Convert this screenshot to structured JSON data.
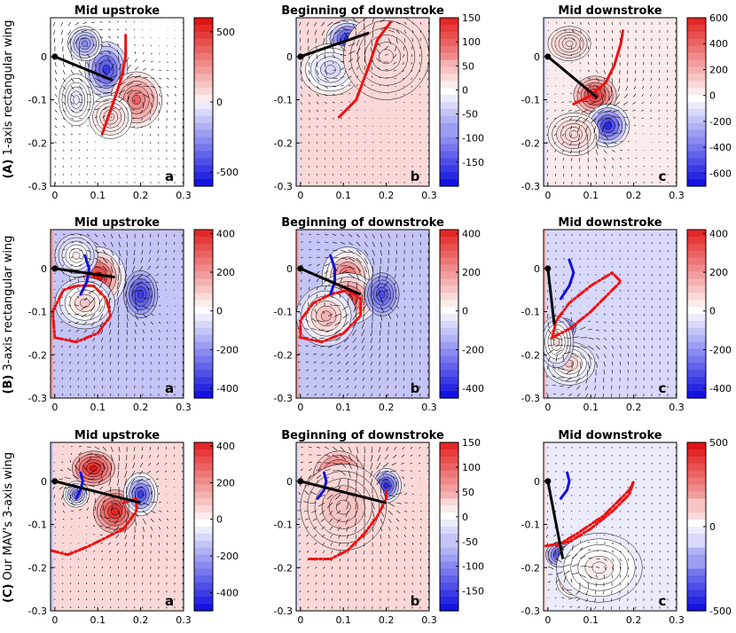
{
  "row_labels": [
    {
      "tag": "(A)",
      "text": "1-axis rectangular wing"
    },
    {
      "tag": "(B)",
      "text": "3-axis rectangular wing"
    },
    {
      "tag": "(C)",
      "text": "Our MAV's 3-axis wing"
    }
  ],
  "colors": {
    "positive": "#e01414",
    "negative": "#1414e0",
    "neutral": "#ffffff",
    "wing": "#000000",
    "trajectory_red": "#ee1111",
    "trajectory_blue": "#1111dd"
  },
  "chart_data": [
    {
      "type": "heatmap",
      "title": "Mid upstroke",
      "panel_letter": "a",
      "x_ticks": [
        "0",
        "0.1",
        "0.2",
        "0.3"
      ],
      "y_ticks": [
        "0",
        "-0.1",
        "-0.2",
        "-0.3"
      ],
      "xlim": [
        -0.01,
        0.3
      ],
      "ylim": [
        -0.3,
        0.09
      ],
      "colorbar": {
        "min": -600,
        "max": 600,
        "ticks": [
          500,
          0,
          -500
        ],
        "tick_labels": [
          "500",
          "0",
          "-500"
        ]
      },
      "background": 0,
      "blobs": [
        {
          "x": 0.12,
          "y": -0.03,
          "rx": 0.05,
          "ry": 0.065,
          "v": -500
        },
        {
          "x": 0.07,
          "y": 0.03,
          "rx": 0.04,
          "ry": 0.04,
          "v": -300
        },
        {
          "x": 0.19,
          "y": -0.1,
          "rx": 0.06,
          "ry": 0.065,
          "v": 380
        },
        {
          "x": 0.13,
          "y": -0.14,
          "rx": 0.05,
          "ry": 0.05,
          "v": 120
        },
        {
          "x": 0.05,
          "y": -0.1,
          "rx": 0.04,
          "ry": 0.06,
          "v": -40
        }
      ],
      "wing": [
        [
          0,
          0
        ],
        [
          0.135,
          -0.055
        ]
      ],
      "red_curve": [
        [
          0.11,
          -0.18
        ],
        [
          0.135,
          -0.11
        ],
        [
          0.155,
          -0.05
        ],
        [
          0.165,
          0.0
        ],
        [
          0.165,
          0.05
        ]
      ],
      "blue_curve": []
    },
    {
      "type": "heatmap",
      "title": "Beginning of downstroke",
      "panel_letter": "b",
      "x_ticks": [
        "0",
        "0.1",
        "0.2",
        "0.3"
      ],
      "y_ticks": [
        "0",
        "-0.1",
        "-0.2",
        "-0.3"
      ],
      "xlim": [
        -0.01,
        0.3
      ],
      "ylim": [
        -0.3,
        0.09
      ],
      "colorbar": {
        "min": -200,
        "max": 150,
        "ticks": [
          150,
          100,
          50,
          0,
          -50,
          -100,
          -150
        ],
        "tick_labels": [
          "150",
          "100",
          "50",
          "0",
          "-50",
          "-100",
          "-150"
        ]
      },
      "background": 20,
      "blobs": [
        {
          "x": 0.11,
          "y": 0.04,
          "rx": 0.05,
          "ry": 0.045,
          "v": -180
        },
        {
          "x": 0.07,
          "y": -0.03,
          "rx": 0.07,
          "ry": 0.06,
          "v": -40
        },
        {
          "x": 0.19,
          "y": 0.04,
          "rx": 0.05,
          "ry": 0.05,
          "v": 130
        },
        {
          "x": 0.2,
          "y": 0.0,
          "rx": 0.1,
          "ry": 0.1,
          "v": 30
        }
      ],
      "wing": [
        [
          0,
          0
        ],
        [
          0.16,
          0.055
        ]
      ],
      "red_curve": [
        [
          0.09,
          -0.14
        ],
        [
          0.13,
          -0.1
        ],
        [
          0.16,
          -0.02
        ],
        [
          0.18,
          0.04
        ],
        [
          0.21,
          0.08
        ]
      ],
      "blue_curve": []
    },
    {
      "type": "heatmap",
      "title": "Mid downstroke",
      "panel_letter": "c",
      "x_ticks": [
        "0",
        "0.1",
        "0.2",
        "0.3"
      ],
      "y_ticks": [
        "0",
        "-0.1",
        "-0.2",
        "-0.3"
      ],
      "xlim": [
        -0.01,
        0.3
      ],
      "ylim": [
        -0.3,
        0.09
      ],
      "colorbar": {
        "min": -700,
        "max": 600,
        "ticks": [
          600,
          400,
          200,
          0,
          -200,
          -400,
          -600
        ],
        "tick_labels": [
          "600",
          "400",
          "200",
          "0",
          "-200",
          "-400",
          "-600"
        ]
      },
      "background": 60,
      "blobs": [
        {
          "x": 0.11,
          "y": -0.09,
          "rx": 0.05,
          "ry": 0.045,
          "v": 550
        },
        {
          "x": 0.14,
          "y": -0.16,
          "rx": 0.05,
          "ry": 0.05,
          "v": -650
        },
        {
          "x": 0.06,
          "y": -0.18,
          "rx": 0.06,
          "ry": 0.05,
          "v": 100
        },
        {
          "x": 0.05,
          "y": 0.03,
          "rx": 0.05,
          "ry": 0.04,
          "v": 120
        }
      ],
      "wing": [
        [
          0,
          0
        ],
        [
          0.115,
          -0.095
        ]
      ],
      "red_curve": [
        [
          0.06,
          -0.11
        ],
        [
          0.1,
          -0.09
        ],
        [
          0.135,
          -0.06
        ],
        [
          0.155,
          -0.02
        ],
        [
          0.17,
          0.03
        ],
        [
          0.175,
          0.06
        ]
      ],
      "blue_curve": []
    },
    {
      "type": "heatmap",
      "title": "Mid upstroke",
      "panel_letter": "a",
      "x_ticks": [
        "0",
        "0.1",
        "0.2",
        "0.3"
      ],
      "y_ticks": [
        "0",
        "-0.1",
        "-0.2",
        "-0.3"
      ],
      "xlim": [
        -0.01,
        0.3
      ],
      "ylim": [
        -0.3,
        0.09
      ],
      "colorbar": {
        "min": -450,
        "max": 420,
        "ticks": [
          400,
          200,
          0,
          -200,
          -400
        ],
        "tick_labels": [
          "400",
          "200",
          "0",
          "-200",
          "-400"
        ]
      },
      "background": -110,
      "blobs": [
        {
          "x": 0.1,
          "y": -0.02,
          "rx": 0.065,
          "ry": 0.07,
          "v": 420
        },
        {
          "x": 0.07,
          "y": -0.08,
          "rx": 0.07,
          "ry": 0.06,
          "v": 120
        },
        {
          "x": 0.2,
          "y": -0.06,
          "rx": 0.04,
          "ry": 0.055,
          "v": -380
        },
        {
          "x": 0.05,
          "y": 0.03,
          "rx": 0.05,
          "ry": 0.05,
          "v": 40
        }
      ],
      "wing": [
        [
          0,
          0
        ],
        [
          0.14,
          -0.02
        ]
      ],
      "red_curve": [
        [
          0.0,
          -0.16
        ],
        [
          0.05,
          -0.17
        ],
        [
          0.1,
          -0.15
        ],
        [
          0.13,
          -0.11
        ],
        [
          0.12,
          -0.07
        ],
        [
          0.09,
          -0.04
        ],
        [
          0.05,
          -0.04
        ],
        [
          0.02,
          -0.05
        ],
        [
          -0.005,
          -0.1
        ],
        [
          0.0,
          -0.16
        ]
      ],
      "blue_curve": [
        [
          0.06,
          -0.06
        ],
        [
          0.075,
          -0.03
        ],
        [
          0.08,
          0.0
        ],
        [
          0.07,
          0.03
        ]
      ]
    },
    {
      "type": "heatmap",
      "title": "Beginning of downstroke",
      "panel_letter": "b",
      "x_ticks": [
        "0",
        "0.1",
        "0.2",
        "0.3"
      ],
      "y_ticks": [
        "0",
        "-0.1",
        "-0.2",
        "-0.3"
      ],
      "xlim": [
        -0.01,
        0.3
      ],
      "ylim": [
        -0.3,
        0.09
      ],
      "colorbar": {
        "min": -450,
        "max": 420,
        "ticks": [
          400,
          200,
          0,
          -200,
          -400
        ],
        "tick_labels": [
          "400",
          "200",
          "0",
          "-200",
          "-400"
        ]
      },
      "background": -110,
      "blobs": [
        {
          "x": 0.11,
          "y": -0.02,
          "rx": 0.06,
          "ry": 0.07,
          "v": 320
        },
        {
          "x": 0.11,
          "y": -0.07,
          "rx": 0.07,
          "ry": 0.06,
          "v": 380
        },
        {
          "x": 0.19,
          "y": -0.06,
          "rx": 0.04,
          "ry": 0.05,
          "v": -330
        },
        {
          "x": 0.06,
          "y": -0.11,
          "rx": 0.07,
          "ry": 0.07,
          "v": 150
        }
      ],
      "wing": [
        [
          0,
          0
        ],
        [
          0.14,
          -0.06
        ]
      ],
      "red_curve": [
        [
          0.0,
          -0.16
        ],
        [
          0.05,
          -0.17
        ],
        [
          0.1,
          -0.15
        ],
        [
          0.14,
          -0.11
        ],
        [
          0.14,
          -0.07
        ],
        [
          0.11,
          -0.05
        ],
        [
          0.07,
          -0.06
        ],
        [
          0.03,
          -0.08
        ],
        [
          0.0,
          -0.12
        ],
        [
          0.0,
          -0.16
        ]
      ],
      "blue_curve": [
        [
          0.07,
          -0.06
        ],
        [
          0.08,
          -0.03
        ],
        [
          0.08,
          0.0
        ],
        [
          0.07,
          0.03
        ]
      ]
    },
    {
      "type": "heatmap",
      "title": "Mid downstroke",
      "panel_letter": "c",
      "x_ticks": [
        "0",
        "0.1",
        "0.2",
        "0.3"
      ],
      "y_ticks": [
        "0",
        "-0.1",
        "-0.2",
        "-0.3"
      ],
      "xlim": [
        -0.01,
        0.3
      ],
      "ylim": [
        -0.3,
        0.09
      ],
      "colorbar": {
        "min": -450,
        "max": 420,
        "ticks": [
          400,
          200,
          0,
          -200,
          -400
        ],
        "tick_labels": [
          "400",
          "200",
          "0",
          "-200",
          "-400"
        ]
      },
      "background": -90,
      "blobs": [
        {
          "x": 0.035,
          "y": -0.14,
          "rx": 0.03,
          "ry": 0.025,
          "v": -420
        },
        {
          "x": 0.045,
          "y": -0.21,
          "rx": 0.035,
          "ry": 0.03,
          "v": 400
        },
        {
          "x": 0.05,
          "y": -0.22,
          "rx": 0.06,
          "ry": 0.05,
          "v": 120
        },
        {
          "x": 0.02,
          "y": -0.17,
          "rx": 0.04,
          "ry": 0.06,
          "v": 60
        }
      ],
      "wing": [
        [
          0,
          0
        ],
        [
          0.015,
          -0.13
        ]
      ],
      "red_curve": [
        [
          0.01,
          -0.16
        ],
        [
          0.05,
          -0.14
        ],
        [
          0.1,
          -0.1
        ],
        [
          0.15,
          -0.05
        ],
        [
          0.17,
          -0.03
        ],
        [
          0.15,
          -0.01
        ],
        [
          0.1,
          -0.04
        ],
        [
          0.05,
          -0.08
        ],
        [
          0.02,
          -0.12
        ],
        [
          0.01,
          -0.16
        ]
      ],
      "blue_curve": [
        [
          0.03,
          -0.07
        ],
        [
          0.05,
          -0.04
        ],
        [
          0.06,
          -0.01
        ],
        [
          0.05,
          0.02
        ]
      ]
    },
    {
      "type": "heatmap",
      "title": "Mid upstroke",
      "panel_letter": "a",
      "x_ticks": [
        "0",
        "0.1",
        "0.2",
        "0.3"
      ],
      "y_ticks": [
        "0",
        "-0.1",
        "-0.2",
        "-0.3"
      ],
      "xlim": [
        -0.01,
        0.3
      ],
      "ylim": [
        -0.3,
        0.09
      ],
      "colorbar": {
        "min": -500,
        "max": 420,
        "ticks": [
          400,
          200,
          0,
          -200,
          -400
        ],
        "tick_labels": [
          "400",
          "200",
          "0",
          "-200",
          "-400"
        ]
      },
      "background": 80,
      "blobs": [
        {
          "x": 0.09,
          "y": 0.03,
          "rx": 0.05,
          "ry": 0.04,
          "v": 420
        },
        {
          "x": 0.14,
          "y": -0.07,
          "rx": 0.05,
          "ry": 0.05,
          "v": 400
        },
        {
          "x": 0.2,
          "y": -0.03,
          "rx": 0.04,
          "ry": 0.05,
          "v": -420
        },
        {
          "x": 0.05,
          "y": -0.03,
          "rx": 0.03,
          "ry": 0.03,
          "v": -300
        }
      ],
      "wing": [
        [
          0,
          0
        ],
        [
          0.2,
          -0.05
        ]
      ],
      "red_curve": [
        [
          -0.01,
          -0.16
        ],
        [
          0.03,
          -0.17
        ],
        [
          0.08,
          -0.15
        ],
        [
          0.12,
          -0.13
        ],
        [
          0.16,
          -0.11
        ],
        [
          0.19,
          -0.07
        ],
        [
          0.19,
          -0.04
        ],
        [
          0.16,
          -0.05
        ]
      ],
      "blue_curve": [
        [
          0.05,
          -0.04
        ],
        [
          0.06,
          -0.02
        ],
        [
          0.065,
          0.0
        ],
        [
          0.06,
          0.02
        ]
      ]
    },
    {
      "type": "heatmap",
      "title": "Beginning of downstroke",
      "panel_letter": "b",
      "x_ticks": [
        "0",
        "0.1",
        "0.2",
        "0.3"
      ],
      "y_ticks": [
        "0",
        "-0.1",
        "-0.2",
        "-0.3"
      ],
      "xlim": [
        -0.01,
        0.3
      ],
      "ylim": [
        -0.3,
        0.09
      ],
      "colorbar": {
        "min": -190,
        "max": 150,
        "ticks": [
          150,
          100,
          50,
          0,
          -50,
          -100,
          -150
        ],
        "tick_labels": [
          "150",
          "100",
          "50",
          "0",
          "-50",
          "-100",
          "-150"
        ]
      },
      "background": 20,
      "blobs": [
        {
          "x": 0.09,
          "y": 0.01,
          "rx": 0.06,
          "ry": 0.06,
          "v": 140
        },
        {
          "x": 0.05,
          "y": -0.02,
          "rx": 0.04,
          "ry": 0.04,
          "v": 110
        },
        {
          "x": 0.2,
          "y": -0.01,
          "rx": 0.035,
          "ry": 0.04,
          "v": -170
        },
        {
          "x": 0.08,
          "y": -0.05,
          "rx": 0.05,
          "ry": 0.035,
          "v": -60
        },
        {
          "x": 0.1,
          "y": -0.06,
          "rx": 0.1,
          "ry": 0.1,
          "v": 40
        }
      ],
      "wing": [
        [
          0,
          0
        ],
        [
          0.2,
          -0.05
        ]
      ],
      "red_curve": [
        [
          0.02,
          -0.18
        ],
        [
          0.07,
          -0.18
        ],
        [
          0.11,
          -0.16
        ],
        [
          0.15,
          -0.12
        ],
        [
          0.18,
          -0.08
        ],
        [
          0.2,
          -0.04
        ],
        [
          0.2,
          -0.02
        ]
      ],
      "blue_curve": [
        [
          0.04,
          -0.04
        ],
        [
          0.055,
          -0.02
        ],
        [
          0.06,
          0.0
        ],
        [
          0.055,
          0.02
        ]
      ]
    },
    {
      "type": "heatmap",
      "title": "Mid downstroke",
      "panel_letter": "c",
      "x_ticks": [
        "0",
        "0.1",
        "0.2",
        "0.3"
      ],
      "y_ticks": [
        "0",
        "-0.1",
        "-0.2",
        "-0.3"
      ],
      "xlim": [
        -0.01,
        0.3
      ],
      "ylim": [
        -0.3,
        0.09
      ],
      "colorbar": {
        "min": -500,
        "max": 500,
        "ticks": [
          500,
          0,
          -500
        ],
        "tick_labels": [
          "500",
          "0",
          "-500"
        ]
      },
      "background": -60,
      "blobs": [
        {
          "x": 0.03,
          "y": -0.17,
          "rx": 0.035,
          "ry": 0.03,
          "v": -400
        },
        {
          "x": 0.06,
          "y": -0.23,
          "rx": 0.04,
          "ry": 0.04,
          "v": 400
        },
        {
          "x": 0.12,
          "y": -0.2,
          "rx": 0.1,
          "ry": 0.08,
          "v": 60
        }
      ],
      "wing": [
        [
          0,
          0
        ],
        [
          0.035,
          -0.18
        ]
      ],
      "red_curve": [
        [
          -0.005,
          -0.15
        ],
        [
          0.05,
          -0.14
        ],
        [
          0.1,
          -0.11
        ],
        [
          0.15,
          -0.07
        ],
        [
          0.19,
          -0.03
        ],
        [
          0.2,
          0.0
        ],
        [
          0.19,
          -0.02
        ],
        [
          0.13,
          -0.08
        ],
        [
          0.07,
          -0.12
        ],
        [
          0.02,
          -0.15
        ]
      ],
      "blue_curve": [
        [
          0.03,
          -0.04
        ],
        [
          0.045,
          -0.02
        ],
        [
          0.05,
          0.0
        ],
        [
          0.045,
          0.02
        ]
      ]
    }
  ]
}
